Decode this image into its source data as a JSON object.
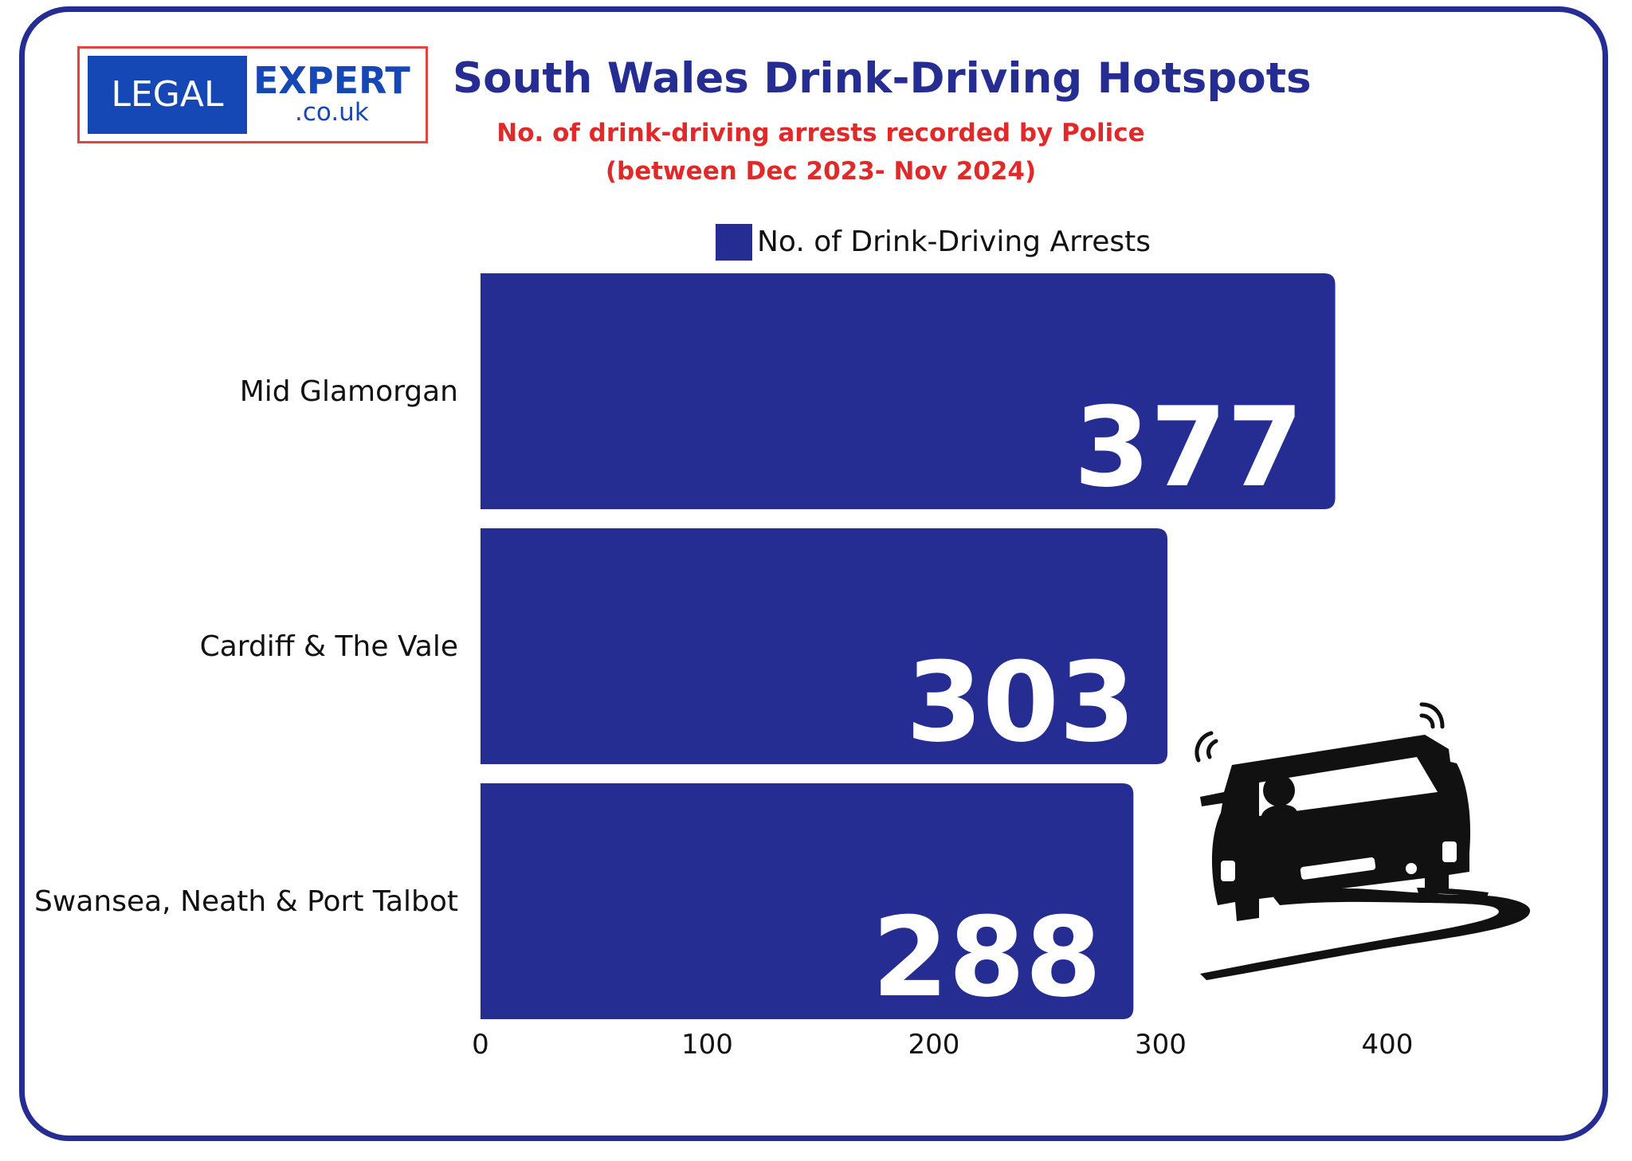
{
  "logo": {
    "left_text": "LEGAL",
    "right_text": "EXPERT",
    "sub_text": ".co.uk"
  },
  "title": "South Wales Drink-Driving Hotspots",
  "subtitle_line1": "No. of drink-driving arrests recorded by Police",
  "subtitle_line2": "(between Dec 2023- Nov 2024)",
  "icons": [
    "drunk-driver-car-icon",
    "swerving-road-icon"
  ],
  "colors": {
    "bar": "#252d92",
    "title": "#252d92",
    "subtitle": "#e02929",
    "logo_border": "#e2453f",
    "logo_blue": "#1547b5"
  },
  "chart_data": {
    "type": "bar",
    "orientation": "horizontal",
    "categories": [
      "Mid Glamorgan",
      "Cardiff & The Vale",
      "Swansea, Neath & Port Talbot"
    ],
    "series": [
      {
        "name": "No. of Drink-Driving Arrests",
        "values": [
          377,
          303,
          288
        ]
      }
    ],
    "xlim": [
      0,
      400
    ],
    "xticks": [
      "0",
      "100",
      "200",
      "300",
      "400"
    ],
    "data_labels": [
      "377",
      "303",
      "288"
    ],
    "legend": "top",
    "grid": false
  }
}
